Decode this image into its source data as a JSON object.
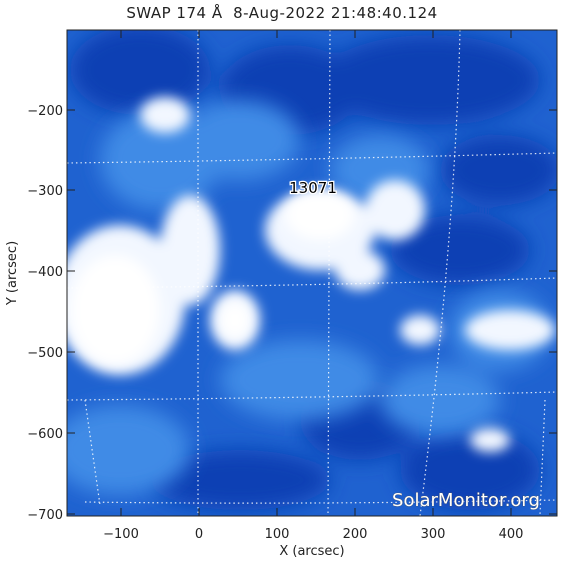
{
  "title": "SWAP 174 Å  8-Aug-2022 21:48:40.124",
  "xlabel": "X (arcsec)",
  "ylabel": "Y (arcsec)",
  "x_ticks": [
    "−100",
    "0",
    "100",
    "200",
    "300",
    "400"
  ],
  "y_ticks": [
    "−200",
    "−300",
    "−400",
    "−500",
    "−600",
    "−700"
  ],
  "region": {
    "label": "13071"
  },
  "watermark": "SolarMonitor.org",
  "colors": {
    "dark": "#0a3fb4",
    "mid": "#2e7ee0",
    "light": "#ffffff"
  }
}
